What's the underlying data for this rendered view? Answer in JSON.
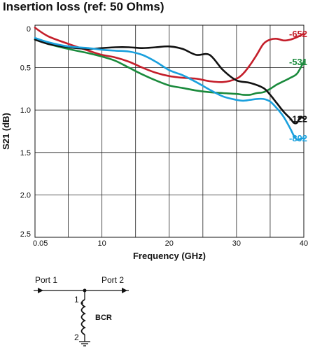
{
  "chart_data": {
    "type": "line",
    "title": "Insertion loss (ref: 50 Ohms)",
    "xlabel": "Frequency (GHz)",
    "ylabel": "S21 (dB)",
    "xlim": [
      0.05,
      40
    ],
    "ylim": [
      0,
      2.5
    ],
    "y_inverted": true,
    "grid": true,
    "x_ticks": [
      0.05,
      10,
      20,
      30,
      40
    ],
    "x_tick_labels": [
      "0.05",
      "10",
      "20",
      "30",
      "40"
    ],
    "y_ticks": [
      0,
      0.5,
      1.0,
      1.5,
      2.0,
      2.5
    ],
    "y_tick_labels": [
      "0",
      "0.5",
      "1.0",
      "1.5",
      "2.0",
      "2.5"
    ],
    "series": [
      {
        "name": "-652",
        "color": "#c41e2a",
        "x": [
          0.05,
          2,
          5,
          8,
          10,
          12,
          14,
          16,
          18,
          20,
          22,
          24,
          26,
          28,
          30,
          31,
          32,
          33,
          34,
          35,
          36,
          37,
          38,
          39,
          40
        ],
        "y": [
          0.03,
          0.13,
          0.22,
          0.3,
          0.35,
          0.38,
          0.43,
          0.5,
          0.56,
          0.6,
          0.62,
          0.63,
          0.66,
          0.67,
          0.63,
          0.57,
          0.47,
          0.35,
          0.22,
          0.17,
          0.16,
          0.18,
          0.17,
          0.14,
          0.1
        ]
      },
      {
        "name": "-531",
        "color": "#1a8a3c",
        "x": [
          0.05,
          2,
          5,
          8,
          10,
          12,
          14,
          16,
          18,
          20,
          22,
          24,
          26,
          28,
          30,
          31,
          32,
          33,
          34,
          35,
          36,
          37,
          38,
          39,
          40
        ],
        "y": [
          0.17,
          0.22,
          0.28,
          0.33,
          0.37,
          0.42,
          0.5,
          0.58,
          0.65,
          0.71,
          0.74,
          0.77,
          0.79,
          0.8,
          0.81,
          0.82,
          0.82,
          0.8,
          0.79,
          0.75,
          0.7,
          0.66,
          0.62,
          0.57,
          0.43
        ]
      },
      {
        "name": "-122",
        "color": "#111111",
        "x": [
          0.05,
          2,
          5,
          8,
          10,
          12,
          14,
          16,
          18,
          20,
          22,
          24,
          26,
          28,
          30,
          32,
          34,
          35,
          36,
          37,
          38,
          38.5,
          39,
          39.5,
          40
        ],
        "y": [
          0.17,
          0.22,
          0.26,
          0.28,
          0.27,
          0.26,
          0.26,
          0.27,
          0.26,
          0.25,
          0.28,
          0.35,
          0.35,
          0.53,
          0.65,
          0.68,
          0.74,
          0.82,
          0.92,
          1.02,
          1.1,
          1.15,
          1.15,
          1.08,
          1.1
        ]
      },
      {
        "name": "-802",
        "color": "#1aa0dd",
        "x": [
          0.05,
          2,
          5,
          8,
          10,
          12,
          14,
          16,
          18,
          20,
          22,
          24,
          26,
          28,
          30,
          31,
          32,
          33,
          34,
          35,
          36,
          37,
          38,
          38.5,
          39,
          39.5,
          40
        ],
        "y": [
          0.15,
          0.2,
          0.25,
          0.27,
          0.29,
          0.3,
          0.31,
          0.35,
          0.43,
          0.53,
          0.59,
          0.67,
          0.76,
          0.84,
          0.88,
          0.89,
          0.88,
          0.87,
          0.87,
          0.9,
          0.98,
          1.08,
          1.22,
          1.3,
          1.35,
          1.34,
          1.33
        ]
      }
    ]
  },
  "schematic": {
    "port1_label": "Port 1",
    "port2_label": "Port 2",
    "component_label": "BCR",
    "pin1_label": "1",
    "pin2_label": "2"
  }
}
